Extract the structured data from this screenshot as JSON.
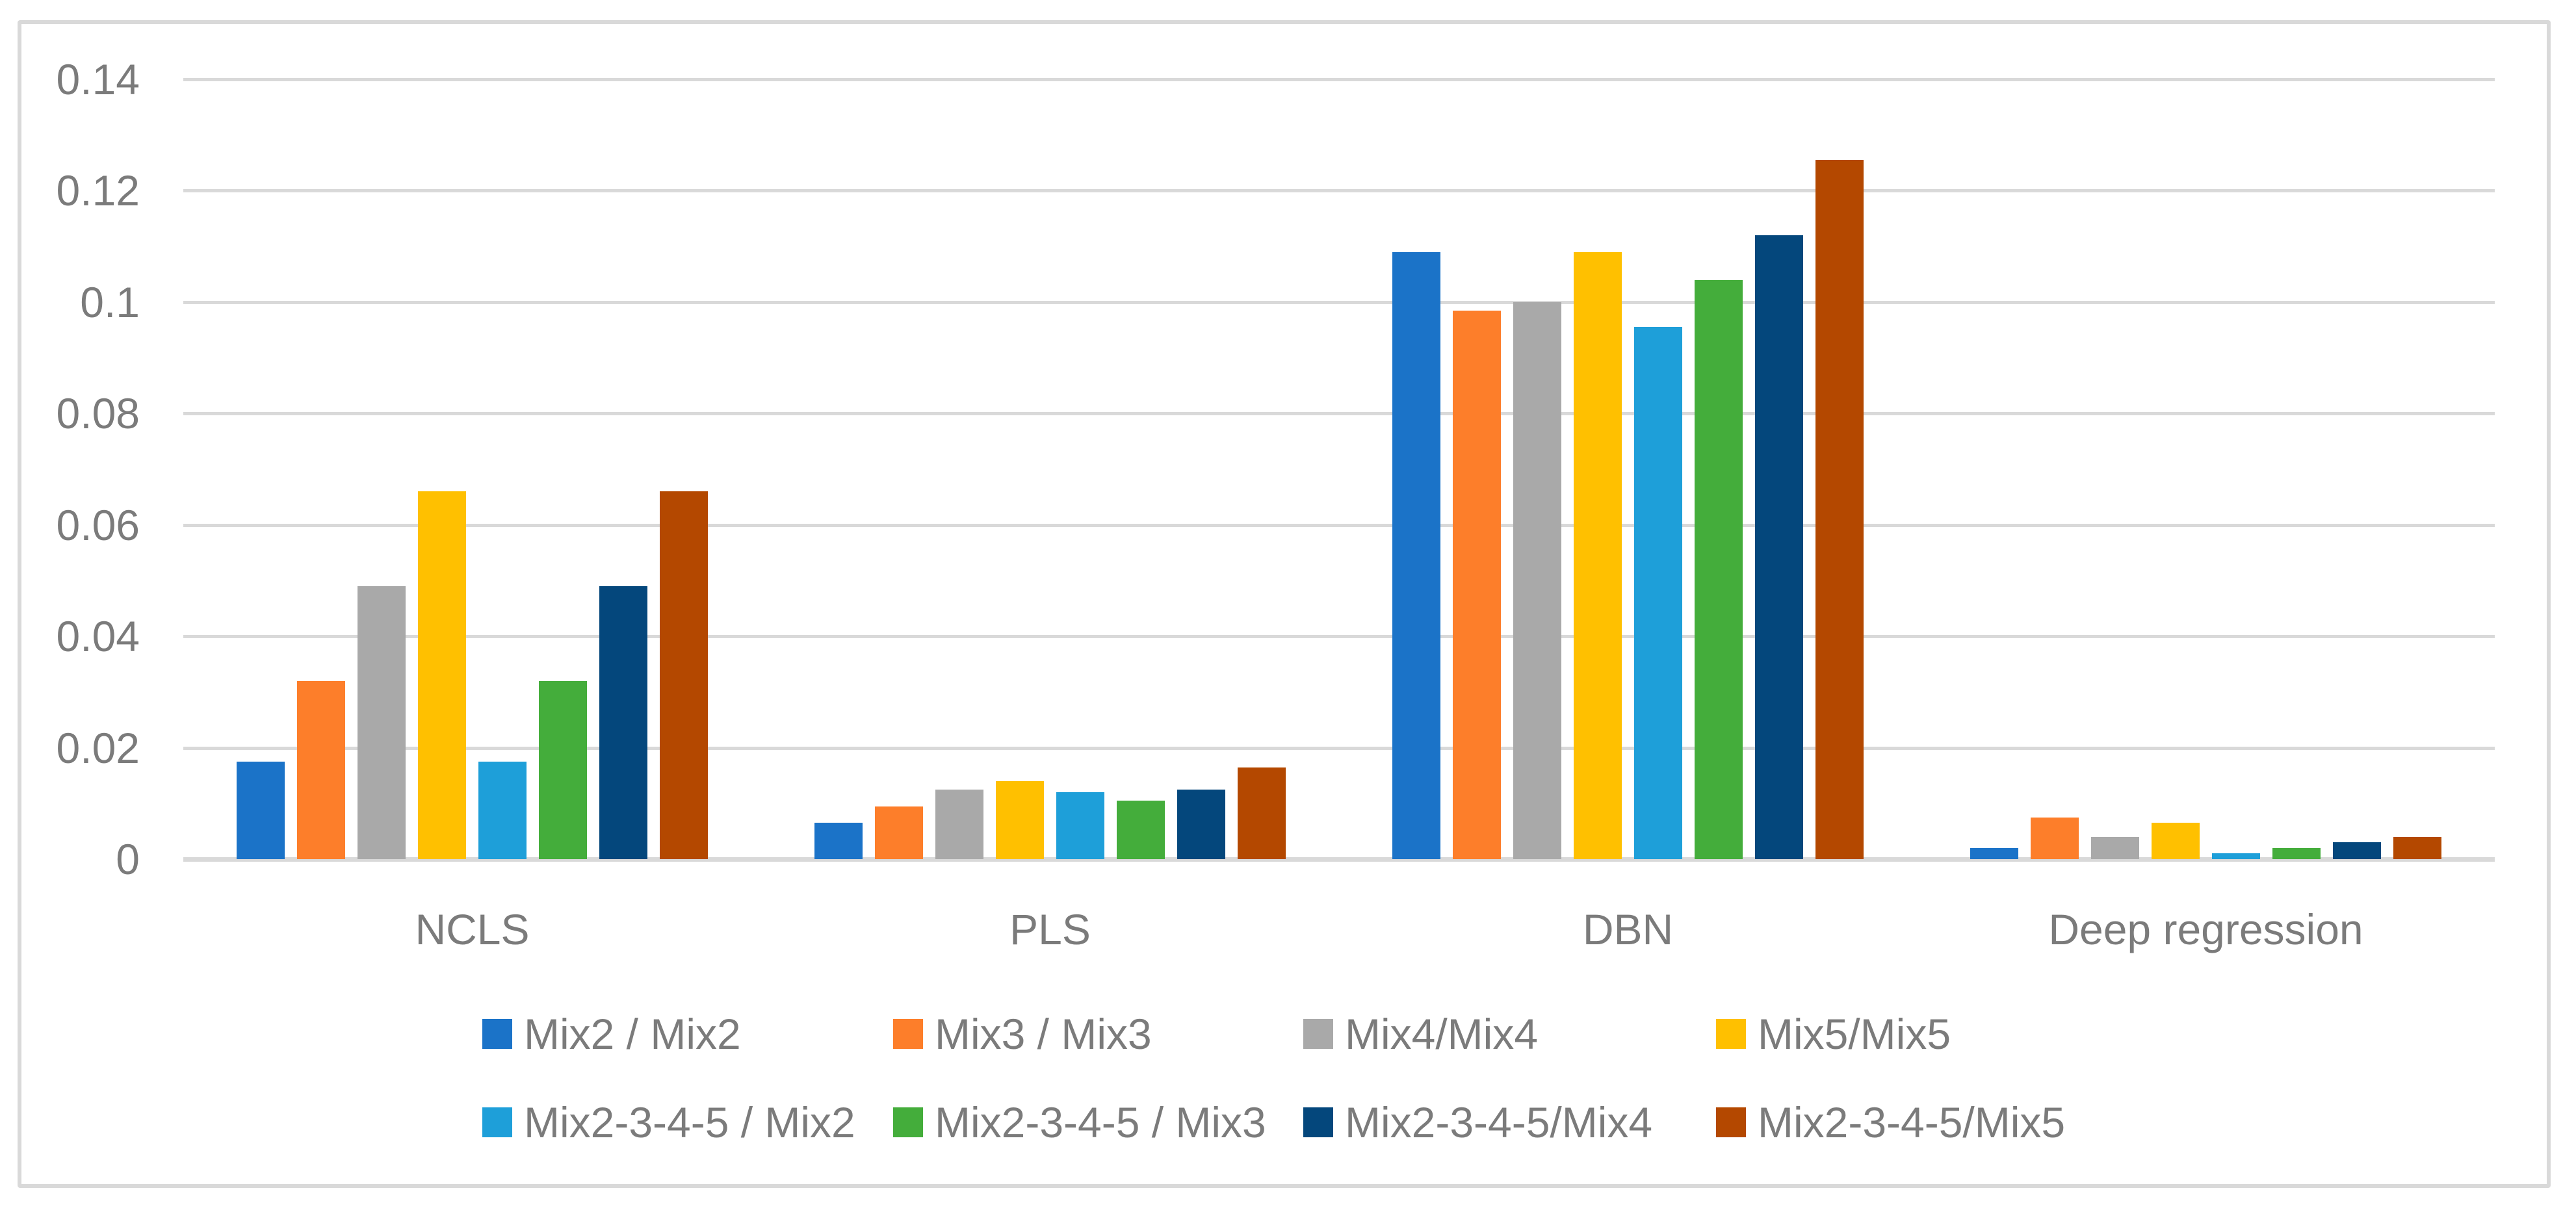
{
  "chart_data": {
    "type": "bar",
    "title": "",
    "xlabel": "",
    "ylabel": "",
    "categories": [
      "NCLS",
      "PLS",
      "DBN",
      "Deep regression"
    ],
    "series": [
      {
        "name": "Mix2 / Mix2",
        "color": "#1B73C8",
        "values": [
          0.0175,
          0.0065,
          0.109,
          0.002
        ]
      },
      {
        "name": "Mix3 / Mix3",
        "color": "#FD7E2A",
        "values": [
          0.032,
          0.0095,
          0.0985,
          0.0075
        ]
      },
      {
        "name": "Mix4/Mix4",
        "color": "#A9A9A9",
        "values": [
          0.049,
          0.0125,
          0.1,
          0.004
        ]
      },
      {
        "name": "Mix5/Mix5",
        "color": "#FFC000",
        "values": [
          0.066,
          0.014,
          0.109,
          0.0065
        ]
      },
      {
        "name": "Mix2-3-4-5 / Mix2",
        "color": "#1E9FD9",
        "values": [
          0.0175,
          0.012,
          0.0955,
          0.001
        ]
      },
      {
        "name": "Mix2-3-4-5 / Mix3",
        "color": "#44AD3B",
        "values": [
          0.032,
          0.0105,
          0.104,
          0.002
        ]
      },
      {
        "name": "Mix2-3-4-5/Mix4",
        "color": "#04477C",
        "values": [
          0.049,
          0.0125,
          0.112,
          0.003
        ]
      },
      {
        "name": "Mix2-3-4-5/Mix5",
        "color": "#B44800",
        "values": [
          0.066,
          0.0165,
          0.1255,
          0.004
        ]
      }
    ],
    "ylim": [
      0,
      0.14
    ],
    "yticks": [
      {
        "label": "0.14",
        "value": 0.14
      },
      {
        "label": "0.12",
        "value": 0.12
      },
      {
        "label": "0.1",
        "value": 0.1
      },
      {
        "label": "0.08",
        "value": 0.08
      },
      {
        "label": "0.06",
        "value": 0.06
      },
      {
        "label": "0.04",
        "value": 0.04
      },
      {
        "label": "0.02",
        "value": 0.02
      },
      {
        "label": "0",
        "value": 0
      }
    ],
    "grid": "horizontal",
    "legend_position": "bottom",
    "legend_rows": [
      [
        0,
        1,
        2,
        3
      ],
      [
        4,
        5,
        6,
        7
      ]
    ]
  },
  "colors": {
    "background": "#FFFFFF",
    "frame_border": "#D9D9D9",
    "gridline": "#D9D9D9",
    "text": "#7B7B7B"
  }
}
